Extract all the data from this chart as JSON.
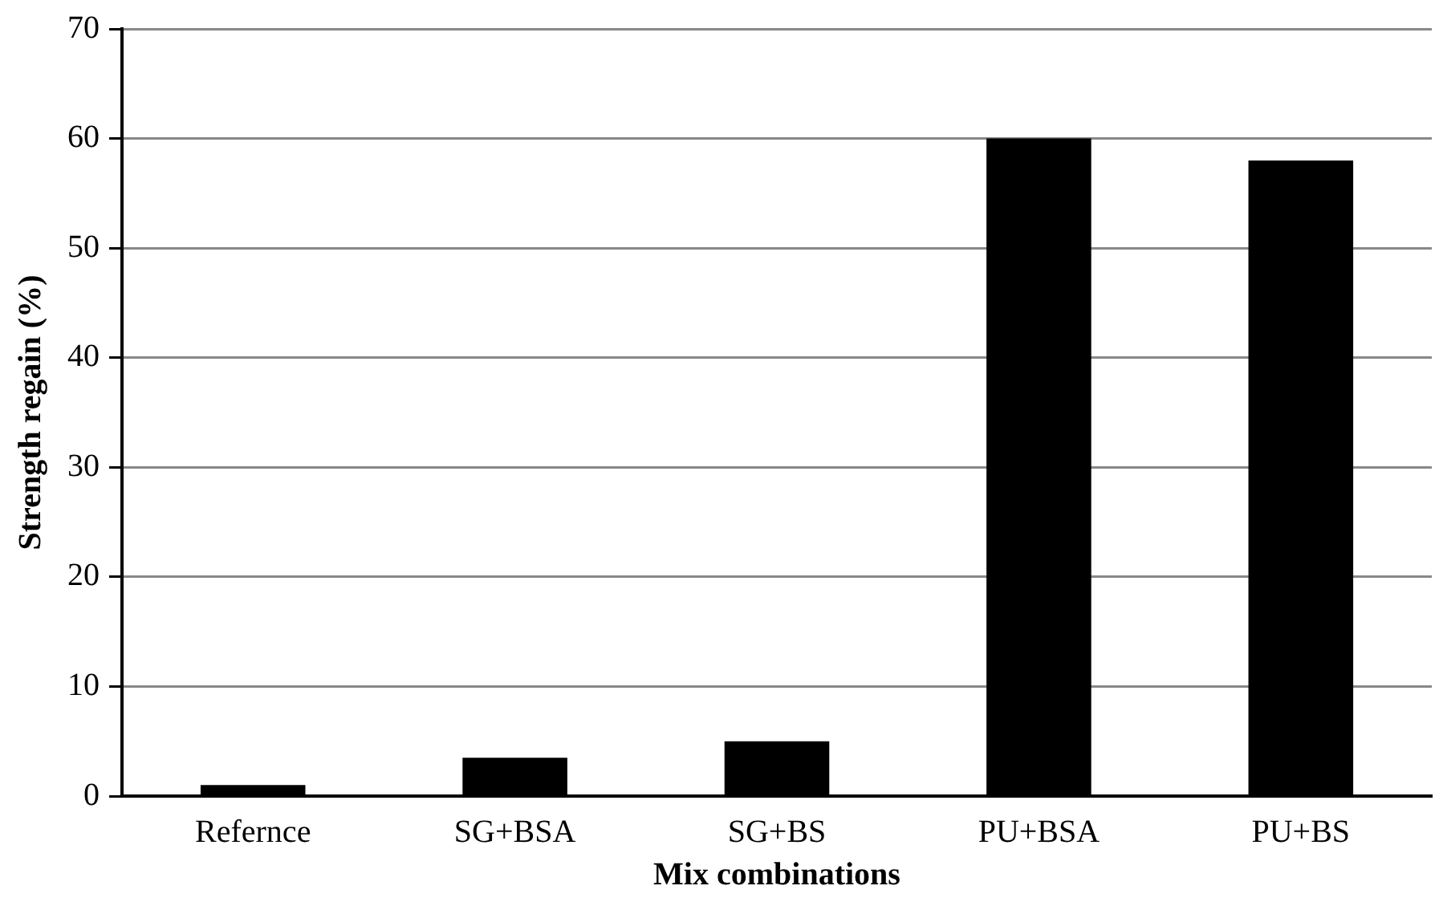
{
  "chart_data": {
    "type": "bar",
    "xlabel": "Mix combinations",
    "ylabel": "Strength regain (%)",
    "categories": [
      "Refernce",
      "SG+BSA",
      "SG+BS",
      "PU+BSA",
      "PU+BS"
    ],
    "values": [
      1,
      3.5,
      5,
      60,
      58
    ],
    "color": "#000000",
    "ylim": [
      0,
      70
    ],
    "yticks": [
      0,
      10,
      20,
      30,
      40,
      50,
      60,
      70
    ],
    "grid": "y",
    "legend": false
  }
}
